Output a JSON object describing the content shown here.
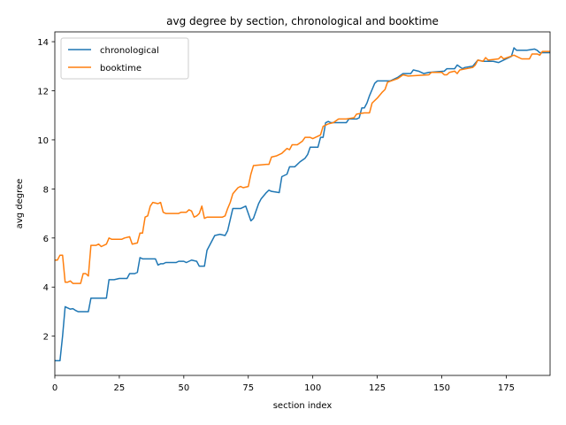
{
  "chart_data": {
    "type": "line",
    "title": "avg degree by section, chronological and booktime",
    "xlabel": "section index",
    "ylabel": "avg degree",
    "xlim": [
      0,
      192
    ],
    "ylim": [
      0.4,
      14.4
    ],
    "xticks": [
      0,
      25,
      50,
      75,
      100,
      125,
      150,
      175
    ],
    "yticks": [
      2,
      4,
      6,
      8,
      10,
      12,
      14
    ],
    "grid": false,
    "legend_position": "upper-left",
    "series": [
      {
        "name": "chronological",
        "color": "#1f77b4",
        "points": [
          [
            0,
            1.0
          ],
          [
            2,
            1.0
          ],
          [
            3,
            2.0
          ],
          [
            4,
            3.2
          ],
          [
            5,
            3.15
          ],
          [
            6,
            3.1
          ],
          [
            7,
            3.12
          ],
          [
            8,
            3.05
          ],
          [
            9,
            3.0
          ],
          [
            13,
            3.0
          ],
          [
            14,
            3.55
          ],
          [
            20,
            3.55
          ],
          [
            21,
            4.3
          ],
          [
            23,
            4.3
          ],
          [
            25,
            4.35
          ],
          [
            28,
            4.35
          ],
          [
            29,
            4.55
          ],
          [
            31,
            4.55
          ],
          [
            32,
            4.6
          ],
          [
            33,
            5.2
          ],
          [
            34,
            5.15
          ],
          [
            39,
            5.15
          ],
          [
            40,
            4.9
          ],
          [
            41,
            4.95
          ],
          [
            42,
            4.95
          ],
          [
            43,
            5.0
          ],
          [
            47,
            5.0
          ],
          [
            48,
            5.05
          ],
          [
            50,
            5.05
          ],
          [
            51,
            5.0
          ],
          [
            53,
            5.1
          ],
          [
            55,
            5.05
          ],
          [
            56,
            4.85
          ],
          [
            58,
            4.85
          ],
          [
            59,
            5.5
          ],
          [
            60,
            5.7
          ],
          [
            62,
            6.1
          ],
          [
            64,
            6.15
          ],
          [
            66,
            6.1
          ],
          [
            67,
            6.3
          ],
          [
            69,
            7.2
          ],
          [
            72,
            7.2
          ],
          [
            74,
            7.3
          ],
          [
            76,
            6.7
          ],
          [
            77,
            6.8
          ],
          [
            79,
            7.4
          ],
          [
            80,
            7.6
          ],
          [
            82,
            7.85
          ],
          [
            83,
            7.95
          ],
          [
            84,
            7.9
          ],
          [
            87,
            7.85
          ],
          [
            88,
            8.5
          ],
          [
            90,
            8.6
          ],
          [
            91,
            8.9
          ],
          [
            93,
            8.9
          ],
          [
            94,
            9.0
          ],
          [
            95,
            9.1
          ],
          [
            97,
            9.25
          ],
          [
            98,
            9.4
          ],
          [
            99,
            9.7
          ],
          [
            102,
            9.7
          ],
          [
            103,
            10.1
          ],
          [
            104,
            10.1
          ],
          [
            105,
            10.7
          ],
          [
            106,
            10.75
          ],
          [
            107,
            10.7
          ],
          [
            113,
            10.7
          ],
          [
            114,
            10.85
          ],
          [
            117,
            10.85
          ],
          [
            118,
            10.9
          ],
          [
            119,
            11.3
          ],
          [
            120,
            11.3
          ],
          [
            121,
            11.5
          ],
          [
            122,
            11.8
          ],
          [
            123,
            12.05
          ],
          [
            124,
            12.3
          ],
          [
            125,
            12.4
          ],
          [
            130,
            12.4
          ],
          [
            133,
            12.55
          ],
          [
            135,
            12.7
          ],
          [
            138,
            12.7
          ],
          [
            139,
            12.85
          ],
          [
            141,
            12.8
          ],
          [
            142,
            12.75
          ],
          [
            143,
            12.7
          ],
          [
            145,
            12.75
          ],
          [
            151,
            12.8
          ],
          [
            152,
            12.9
          ],
          [
            155,
            12.9
          ],
          [
            156,
            13.05
          ],
          [
            158,
            12.9
          ],
          [
            159,
            12.95
          ],
          [
            162,
            13.0
          ],
          [
            164,
            13.25
          ],
          [
            166,
            13.2
          ],
          [
            168,
            13.2
          ],
          [
            170,
            13.2
          ],
          [
            172,
            13.15
          ],
          [
            175,
            13.3
          ],
          [
            177,
            13.4
          ],
          [
            178,
            13.75
          ],
          [
            179,
            13.65
          ],
          [
            183,
            13.65
          ],
          [
            186,
            13.7
          ],
          [
            187,
            13.65
          ],
          [
            188,
            13.55
          ],
          [
            192,
            13.55
          ]
        ]
      },
      {
        "name": "booktime",
        "color": "#ff7f0e",
        "points": [
          [
            0,
            5.1
          ],
          [
            1,
            5.1
          ],
          [
            2,
            5.3
          ],
          [
            3,
            5.3
          ],
          [
            4,
            4.2
          ],
          [
            5,
            4.2
          ],
          [
            6,
            4.25
          ],
          [
            7,
            4.15
          ],
          [
            10,
            4.15
          ],
          [
            11,
            4.55
          ],
          [
            12,
            4.55
          ],
          [
            13,
            4.45
          ],
          [
            14,
            5.7
          ],
          [
            16,
            5.7
          ],
          [
            17,
            5.75
          ],
          [
            18,
            5.65
          ],
          [
            20,
            5.75
          ],
          [
            21,
            6.0
          ],
          [
            22,
            5.95
          ],
          [
            26,
            5.95
          ],
          [
            27,
            6.0
          ],
          [
            29,
            6.05
          ],
          [
            30,
            5.75
          ],
          [
            32,
            5.8
          ],
          [
            33,
            6.2
          ],
          [
            34,
            6.2
          ],
          [
            35,
            6.85
          ],
          [
            36,
            6.9
          ],
          [
            37,
            7.3
          ],
          [
            38,
            7.45
          ],
          [
            40,
            7.4
          ],
          [
            41,
            7.45
          ],
          [
            42,
            7.05
          ],
          [
            43,
            7.0
          ],
          [
            48,
            7.0
          ],
          [
            49,
            7.05
          ],
          [
            51,
            7.05
          ],
          [
            52,
            7.15
          ],
          [
            53,
            7.1
          ],
          [
            54,
            6.85
          ],
          [
            55,
            6.9
          ],
          [
            56,
            7.0
          ],
          [
            57,
            7.3
          ],
          [
            58,
            6.8
          ],
          [
            59,
            6.85
          ],
          [
            65,
            6.85
          ],
          [
            66,
            6.9
          ],
          [
            67,
            7.2
          ],
          [
            68,
            7.45
          ],
          [
            69,
            7.8
          ],
          [
            71,
            8.05
          ],
          [
            72,
            8.1
          ],
          [
            73,
            8.05
          ],
          [
            75,
            8.1
          ],
          [
            76,
            8.6
          ],
          [
            77,
            8.95
          ],
          [
            82,
            9.0
          ],
          [
            83,
            9.0
          ],
          [
            84,
            9.3
          ],
          [
            86,
            9.35
          ],
          [
            88,
            9.45
          ],
          [
            89,
            9.55
          ],
          [
            90,
            9.65
          ],
          [
            91,
            9.6
          ],
          [
            92,
            9.8
          ],
          [
            94,
            9.8
          ],
          [
            96,
            9.95
          ],
          [
            97,
            10.1
          ],
          [
            99,
            10.1
          ],
          [
            100,
            10.05
          ],
          [
            102,
            10.15
          ],
          [
            103,
            10.2
          ],
          [
            104,
            10.55
          ],
          [
            106,
            10.65
          ],
          [
            108,
            10.7
          ],
          [
            110,
            10.85
          ],
          [
            113,
            10.85
          ],
          [
            116,
            10.9
          ],
          [
            117,
            11.05
          ],
          [
            120,
            11.1
          ],
          [
            122,
            11.1
          ],
          [
            123,
            11.5
          ],
          [
            125,
            11.7
          ],
          [
            127,
            11.95
          ],
          [
            128,
            12.05
          ],
          [
            129,
            12.35
          ],
          [
            133,
            12.5
          ],
          [
            135,
            12.65
          ],
          [
            137,
            12.6
          ],
          [
            145,
            12.65
          ],
          [
            146,
            12.75
          ],
          [
            150,
            12.75
          ],
          [
            151,
            12.65
          ],
          [
            152,
            12.65
          ],
          [
            153,
            12.75
          ],
          [
            155,
            12.8
          ],
          [
            156,
            12.7
          ],
          [
            157,
            12.85
          ],
          [
            162,
            12.95
          ],
          [
            163,
            13.05
          ],
          [
            164,
            13.25
          ],
          [
            166,
            13.2
          ],
          [
            167,
            13.35
          ],
          [
            168,
            13.25
          ],
          [
            172,
            13.3
          ],
          [
            173,
            13.4
          ],
          [
            174,
            13.3
          ],
          [
            178,
            13.45
          ],
          [
            179,
            13.4
          ],
          [
            181,
            13.3
          ],
          [
            184,
            13.3
          ],
          [
            185,
            13.5
          ],
          [
            187,
            13.5
          ],
          [
            188,
            13.45
          ],
          [
            189,
            13.6
          ],
          [
            192,
            13.6
          ]
        ]
      }
    ]
  }
}
